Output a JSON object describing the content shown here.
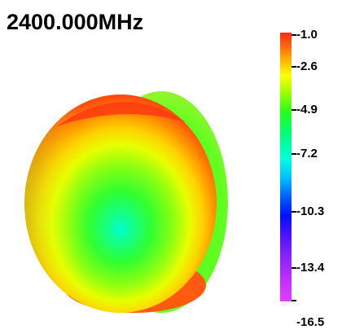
{
  "title": "2400.000MHz",
  "colorbar": {
    "ticks": [
      "-1.0",
      "-2.6",
      "-4.9",
      "-7.2",
      "-10.3",
      "-13.4",
      "-16.5"
    ],
    "colors": {
      "max": "#ff2a10",
      "high": "#ffff00",
      "mid": "#20ff20",
      "low": "#00ffe0",
      "lower": "#0010ff",
      "min": "#e040ff"
    }
  }
}
